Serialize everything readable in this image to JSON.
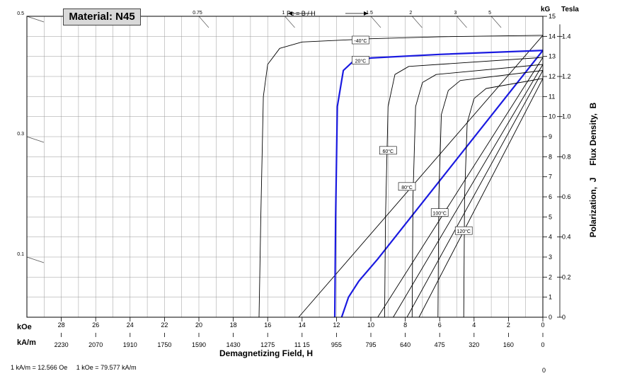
{
  "chart_data": {
    "type": "line",
    "title": "Material: N45",
    "xlabel": "Demagnetizing Field, H",
    "ylabel": "Polarization,  J     Flux Density,  B",
    "x_unit_primary": "kOe",
    "x_unit_secondary": "kA/m",
    "y_unit_left": "kG",
    "y_unit_right": "Tesla",
    "xlim": [
      30,
      0
    ],
    "ylim": [
      0,
      15
    ],
    "x_ticks_koe": [
      "28",
      "26",
      "24",
      "22",
      "20",
      "18",
      "16",
      "14",
      "12",
      "10",
      "8",
      "6",
      "4",
      "2",
      "0"
    ],
    "x_ticks_kam": [
      "2230",
      "2070",
      "1910",
      "1750",
      "1590",
      "1430",
      "1275",
      "11 15",
      "955",
      "795",
      "640",
      "475",
      "320",
      "160",
      "0"
    ],
    "y_ticks_kg": [
      "15",
      "14",
      "13",
      "12",
      "11",
      "10",
      "9",
      "8",
      "7",
      "6",
      "5",
      "4",
      "3",
      "2",
      "1",
      "0"
    ],
    "y_ticks_tesla": [
      "1.4",
      "1.2",
      "1.0",
      "0.8",
      "0.6",
      "0.4",
      "0.2",
      "0"
    ],
    "pc_label": "Pc = B / H",
    "pc_ticks": [
      {
        "label": "0.5",
        "edge": "left",
        "y": 15
      },
      {
        "label": "0.3",
        "edge": "left",
        "y": 9
      },
      {
        "label": "0.1",
        "edge": "left",
        "y": 3
      },
      {
        "label": "0.75",
        "edge": "top",
        "x": 20
      },
      {
        "label": "1",
        "edge": "top",
        "x": 15
      },
      {
        "label": "1.5",
        "edge": "top",
        "x": 10
      },
      {
        "label": "2",
        "edge": "top",
        "x": 7.6
      },
      {
        "label": "3",
        "edge": "top",
        "x": 5
      },
      {
        "label": "5",
        "edge": "top",
        "x": 3
      }
    ],
    "footnote": "1 kA/m = 12.566 Oe     1 kOe = 79.577 kA/m",
    "corner_label": "0",
    "series": [
      {
        "name": "-40°C",
        "label_at": [
          10.6,
          13.8
        ],
        "J": [
          [
            16.5,
            0
          ],
          [
            16.4,
            5
          ],
          [
            16.25,
            11
          ],
          [
            16,
            12.6
          ],
          [
            15.3,
            13.4
          ],
          [
            14,
            13.72
          ],
          [
            10,
            13.88
          ],
          [
            6,
            13.98
          ],
          [
            0,
            14.05
          ]
        ]
      },
      {
        "name": "20°C",
        "highlight": true,
        "label_at": [
          10.6,
          12.8
        ],
        "J": [
          [
            12.1,
            0
          ],
          [
            12.05,
            5
          ],
          [
            11.95,
            10.5
          ],
          [
            11.6,
            12.3
          ],
          [
            11,
            12.78
          ],
          [
            10,
            12.92
          ],
          [
            6,
            13.1
          ],
          [
            0,
            13.3
          ]
        ],
        "B": [
          [
            11.7,
            0
          ],
          [
            11.3,
            1
          ],
          [
            10.7,
            1.8
          ],
          [
            9.6,
            2.9
          ],
          [
            0,
            13.3
          ]
        ]
      },
      {
        "name": "60°C",
        "label_at": [
          9.0,
          8.3
        ],
        "J": [
          [
            9.2,
            0
          ],
          [
            9.15,
            5
          ],
          [
            9.0,
            10.5
          ],
          [
            8.6,
            12.1
          ],
          [
            7.8,
            12.5
          ],
          [
            0,
            12.95
          ]
        ]
      },
      {
        "name": "80°C",
        "label_at": [
          7.9,
          6.5
        ],
        "J": [
          [
            7.6,
            0
          ],
          [
            7.55,
            6
          ],
          [
            7.4,
            10.5
          ],
          [
            7.0,
            11.7
          ],
          [
            6.2,
            12.1
          ],
          [
            0,
            12.6
          ]
        ]
      },
      {
        "name": "100°C",
        "label_at": [
          6.0,
          5.2
        ],
        "J": [
          [
            6.1,
            0
          ],
          [
            6.05,
            6
          ],
          [
            5.9,
            10.1
          ],
          [
            5.5,
            11.3
          ],
          [
            4.8,
            11.8
          ],
          [
            0,
            12.3
          ]
        ]
      },
      {
        "name": "120°C",
        "label_at": [
          4.6,
          4.3
        ],
        "J": [
          [
            4.6,
            0
          ],
          [
            4.55,
            6
          ],
          [
            4.4,
            9.7
          ],
          [
            4.0,
            10.9
          ],
          [
            3.3,
            11.4
          ],
          [
            0,
            11.9
          ]
        ]
      }
    ],
    "b_lines_intercept_x": [
      14.2,
      11.7,
      9.6,
      8.7,
      7.9,
      7.2
    ],
    "b_lines_end_y": [
      14.05,
      13.3,
      12.95,
      12.6,
      12.3,
      11.9
    ],
    "grid": true,
    "legend": "inline labels"
  }
}
